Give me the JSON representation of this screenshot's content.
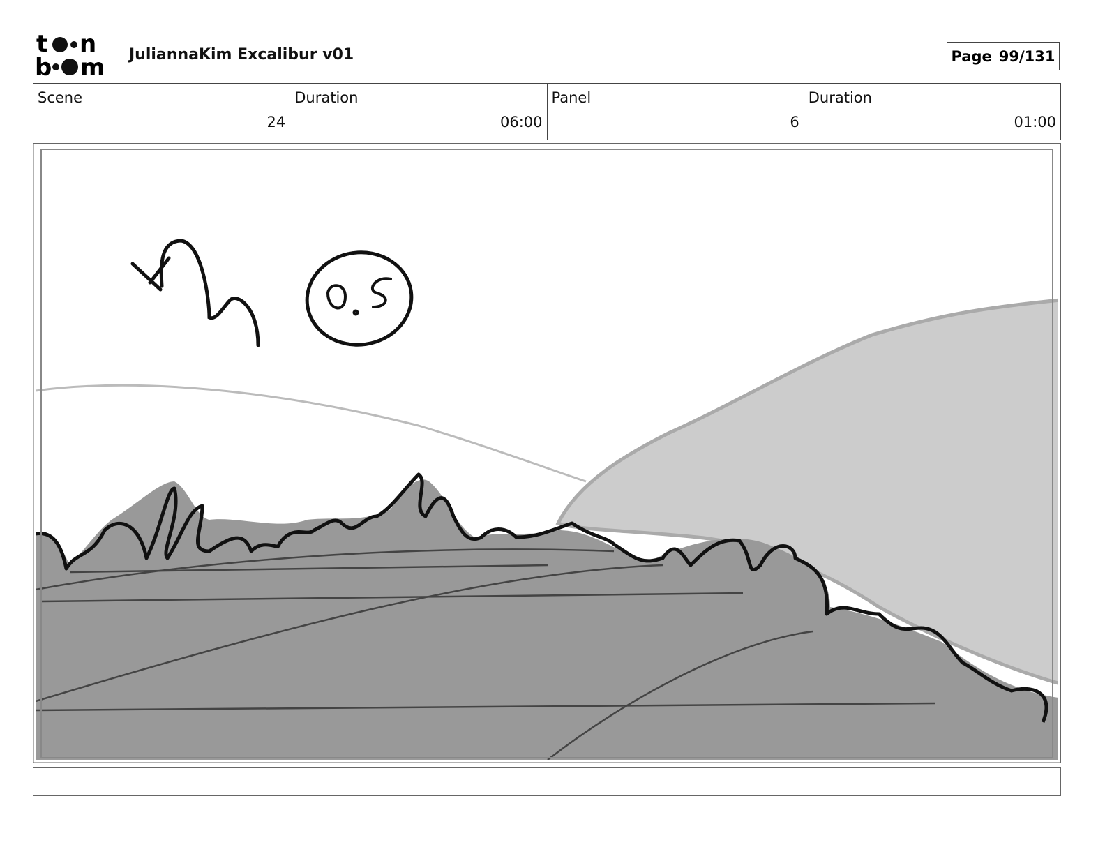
{
  "header": {
    "logo": [
      "t",
      "n",
      "b",
      "m"
    ],
    "title": "JuliannaKim Excalibur v01",
    "page_label": "Page",
    "page": "99/131"
  },
  "info": [
    {
      "label": "Scene",
      "value": 24
    },
    {
      "label": "Duration",
      "value": "06:00"
    },
    {
      "label": "Panel",
      "value": 6
    },
    {
      "label": "Duration",
      "value": "01:00"
    }
  ]
}
